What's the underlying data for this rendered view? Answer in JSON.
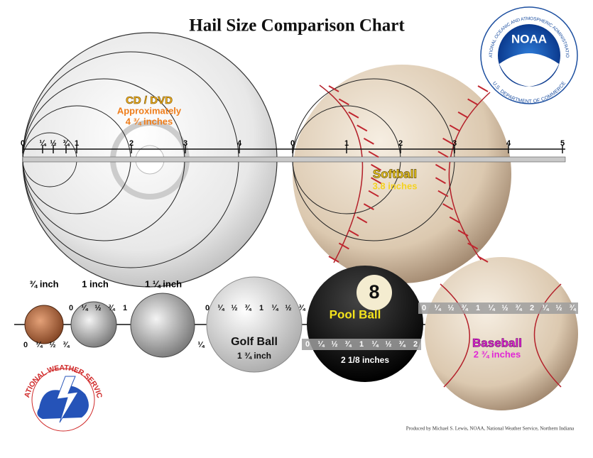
{
  "title": "Hail Size Comparison Chart",
  "noaa": {
    "acronym": "NOAA",
    "agency": "NATIONAL OCEANIC AND ATMOSPHERIC ADMINISTRATION",
    "department": "U.S. DEPARTMENT OF COMMERCE"
  },
  "cd": {
    "name": "CD / DVD",
    "note": "Approximately",
    "size": "4 ¾ inches",
    "ruler": [
      "0",
      "¼",
      "½",
      "¾",
      "1",
      "2",
      "3",
      "4"
    ]
  },
  "softball": {
    "name": "Softball",
    "size": "3.8 inches",
    "ruler": [
      "0",
      "1",
      "2",
      "3",
      "4",
      "5"
    ]
  },
  "coins": {
    "labels": [
      "¾ inch",
      "1 inch",
      "1 ¼ inch"
    ],
    "ruler_above": [
      "0",
      "¼",
      "½",
      "¾",
      "1"
    ],
    "ruler_below": [
      "0",
      "¼",
      "½",
      "¾"
    ],
    "half_dollar_mark": "¼"
  },
  "golf_ball": {
    "name": "Golf Ball",
    "size": "1 ¾ inch",
    "ruler": [
      "0",
      "¼",
      "½",
      "¾",
      "1",
      "¼",
      "½",
      "¾"
    ]
  },
  "pool_ball": {
    "name": "Pool Ball",
    "number": "8",
    "size": "2 1/8 inches",
    "ruler": [
      "0",
      "¼",
      "½",
      "¾",
      "1",
      "¼",
      "½",
      "¾",
      "2"
    ]
  },
  "baseball": {
    "name": "Baseball",
    "size": "2 ¾ inches",
    "ruler": [
      "0",
      "¼",
      "½",
      "¾",
      "1",
      "¼",
      "½",
      "¾",
      "2",
      "¼",
      "½",
      "¾"
    ]
  },
  "nws": {
    "name": "NATIONAL WEATHER SERVICE"
  },
  "credit": "Produced by Michael S. Lewis, NOAA, National Weather Service, Northern Indiana"
}
